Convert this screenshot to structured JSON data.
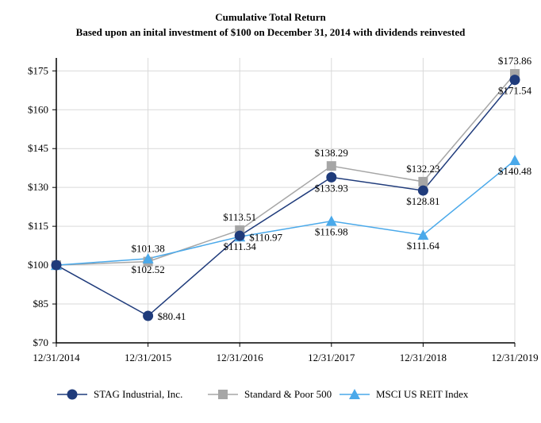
{
  "chart_data": {
    "type": "line",
    "title": "Cumulative Total Return",
    "subtitle": "Based upon an inital investment of $100 on December 31, 2014 with dividends reinvested",
    "categories": [
      "12/31/2014",
      "12/31/2015",
      "12/31/2016",
      "12/31/2017",
      "12/31/2018",
      "12/31/2019"
    ],
    "y_ticks": [
      "$70",
      "$85",
      "$100",
      "$115",
      "$130",
      "$145",
      "$160",
      "$175"
    ],
    "ylim": [
      70,
      180
    ],
    "grid": true,
    "legend_position": "bottom",
    "series": [
      {
        "name": "STAG Industrial, Inc.",
        "marker": "circle",
        "color": "#1f3b7b",
        "values": [
          100,
          80.41,
          111.34,
          133.93,
          128.81,
          171.54
        ],
        "labels": [
          "",
          "$80.41",
          "$111.34",
          "$133.93",
          "$128.81",
          "$171.54"
        ]
      },
      {
        "name": "Standard & Poor 500",
        "marker": "square",
        "color": "#a6a6a6",
        "values": [
          100,
          101.38,
          113.51,
          138.29,
          132.23,
          173.86
        ],
        "labels": [
          "",
          "$101.38",
          "$113.51",
          "$138.29",
          "$132.23",
          "$173.86"
        ]
      },
      {
        "name": "MSCI US REIT Index",
        "marker": "triangle",
        "color": "#4aa9ea",
        "values": [
          100,
          102.52,
          110.97,
          116.98,
          111.64,
          140.48
        ],
        "labels": [
          "",
          "$102.52",
          "$110.97",
          "$116.98",
          "$111.64",
          "$140.48"
        ]
      }
    ]
  }
}
